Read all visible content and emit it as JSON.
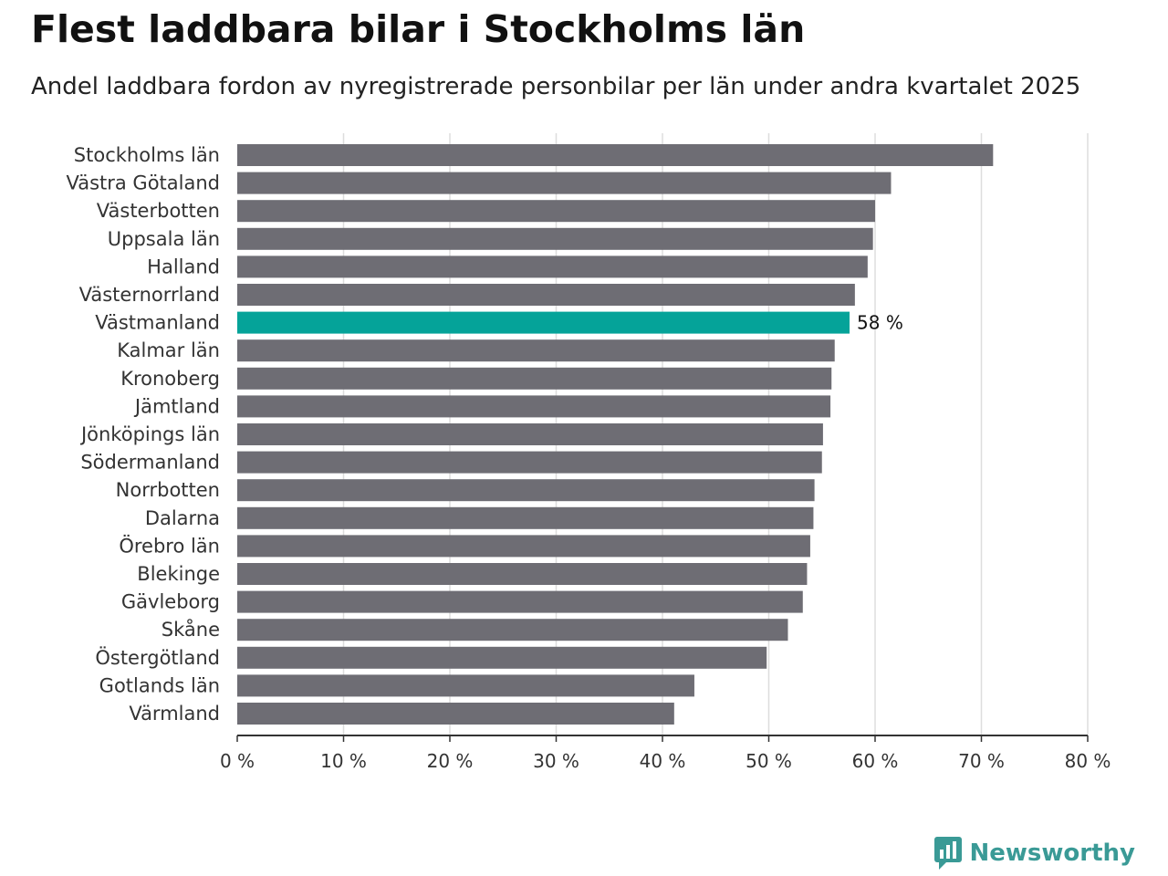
{
  "header": {
    "title": "Flest laddbara bilar i Stockholms län",
    "subtitle": "Andel laddbara fordon av nyregistrerade personbilar per län under andra kvartalet 2025"
  },
  "brand": {
    "name": "Newsworthy",
    "icon": "newsworthy-logo-icon",
    "color": "#3a9a96"
  },
  "chart_data": {
    "type": "bar",
    "orientation": "horizontal",
    "categories": [
      "Stockholms län",
      "Västra Götaland",
      "Västerbotten",
      "Uppsala län",
      "Halland",
      "Västernorrland",
      "Västmanland",
      "Kalmar län",
      "Kronoberg",
      "Jämtland",
      "Jönköpings län",
      "Södermanland",
      "Norrbotten",
      "Dalarna",
      "Örebro län",
      "Blekinge",
      "Gävleborg",
      "Skåne",
      "Östergötland",
      "Gotlands län",
      "Värmland"
    ],
    "values": [
      71.1,
      61.5,
      60.0,
      59.8,
      59.3,
      58.1,
      57.6,
      56.2,
      55.9,
      55.8,
      55.1,
      55.0,
      54.3,
      54.2,
      53.9,
      53.6,
      53.2,
      51.8,
      49.8,
      43.0,
      41.1
    ],
    "highlight": {
      "category": "Västmanland",
      "label": "58 %"
    },
    "colors": {
      "bar": "#6e6d74",
      "highlight": "#05a399",
      "grid": "#dddddd",
      "axis": "#333333"
    },
    "xlim": [
      0,
      80
    ],
    "xticks": [
      0,
      10,
      20,
      30,
      40,
      50,
      60,
      70,
      80
    ],
    "xtick_labels": [
      "0 %",
      "10 %",
      "20 %",
      "30 %",
      "40 %",
      "50 %",
      "60 %",
      "70 %",
      "80 %"
    ],
    "xlabel": "",
    "ylabel": "",
    "grid": true
  }
}
